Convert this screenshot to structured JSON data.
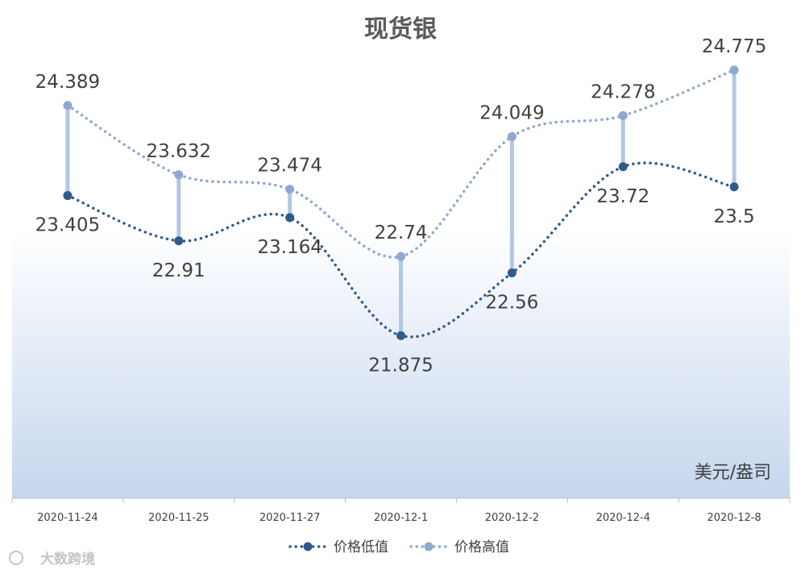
{
  "chart_data": {
    "type": "line",
    "title": "现货银",
    "unit_label": "美元/盎司",
    "categories": [
      "2020-11-24",
      "2020-11-25",
      "2020-11-27",
      "2020-12-1",
      "2020-12-2",
      "2020-12-4",
      "2020-12-8"
    ],
    "series": [
      {
        "name": "价格低值",
        "values": [
          23.405,
          22.91,
          23.164,
          21.875,
          22.56,
          23.72,
          23.5
        ],
        "labels": [
          "23.405",
          "22.91",
          "23.164",
          "21.875",
          "22.56",
          "23.72",
          "23.5"
        ],
        "color": "#2e5c8e"
      },
      {
        "name": "价格高值",
        "values": [
          24.389,
          23.632,
          23.474,
          22.74,
          24.049,
          24.278,
          24.775
        ],
        "labels": [
          "24.389",
          "23.632",
          "23.474",
          "22.74",
          "24.049",
          "24.278",
          "24.775"
        ],
        "color": "#8fa8d0"
      }
    ],
    "ylim": [
      20.1,
      25.1
    ],
    "grid": false,
    "legend_position": "bottom",
    "high_low_lines": true,
    "colors": {
      "low": "#2e5c8e",
      "high": "#8fa8d0",
      "hilo": "#b4c7e3",
      "background_gradient_start": "#ffffff",
      "background_gradient_end": "#c5d6ee"
    }
  },
  "watermark": "大数跨境"
}
